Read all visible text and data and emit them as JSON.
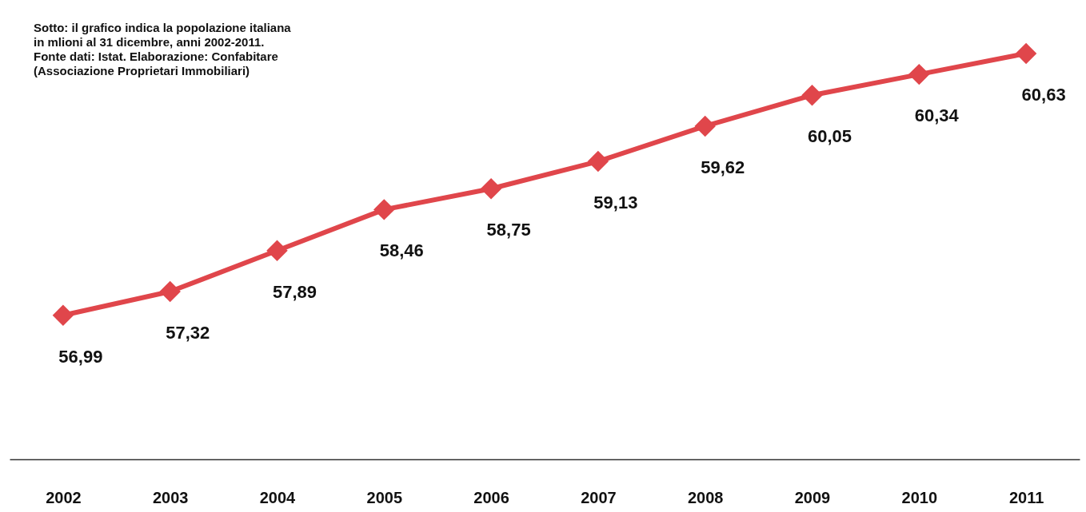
{
  "chart_data": {
    "type": "line",
    "categories": [
      "2002",
      "2003",
      "2004",
      "2005",
      "2006",
      "2007",
      "2008",
      "2009",
      "2010",
      "2011"
    ],
    "series": [
      {
        "color": "#e0464b",
        "values": [
          56.99,
          57.32,
          57.89,
          58.46,
          58.75,
          59.13,
          59.62,
          60.05,
          60.34,
          60.63
        ],
        "value_labels": [
          "56,99",
          "57,32",
          "57,89",
          "58,46",
          "58,75",
          "59,13",
          "59,62",
          "60,05",
          "60,34",
          "60,63"
        ]
      }
    ],
    "tick_labels": "x",
    "grid": false,
    "marker": "diamond",
    "line_style": "solid",
    "annotations": [
      "Sotto: il grafico indica la popolazione italiana\nin mlioni al 31 dicembre, anni 2002-2011.\nFonte dati: Istat. Elaborazione: Confabitare\n(Associazione Proprietari Immobiliari)"
    ]
  }
}
